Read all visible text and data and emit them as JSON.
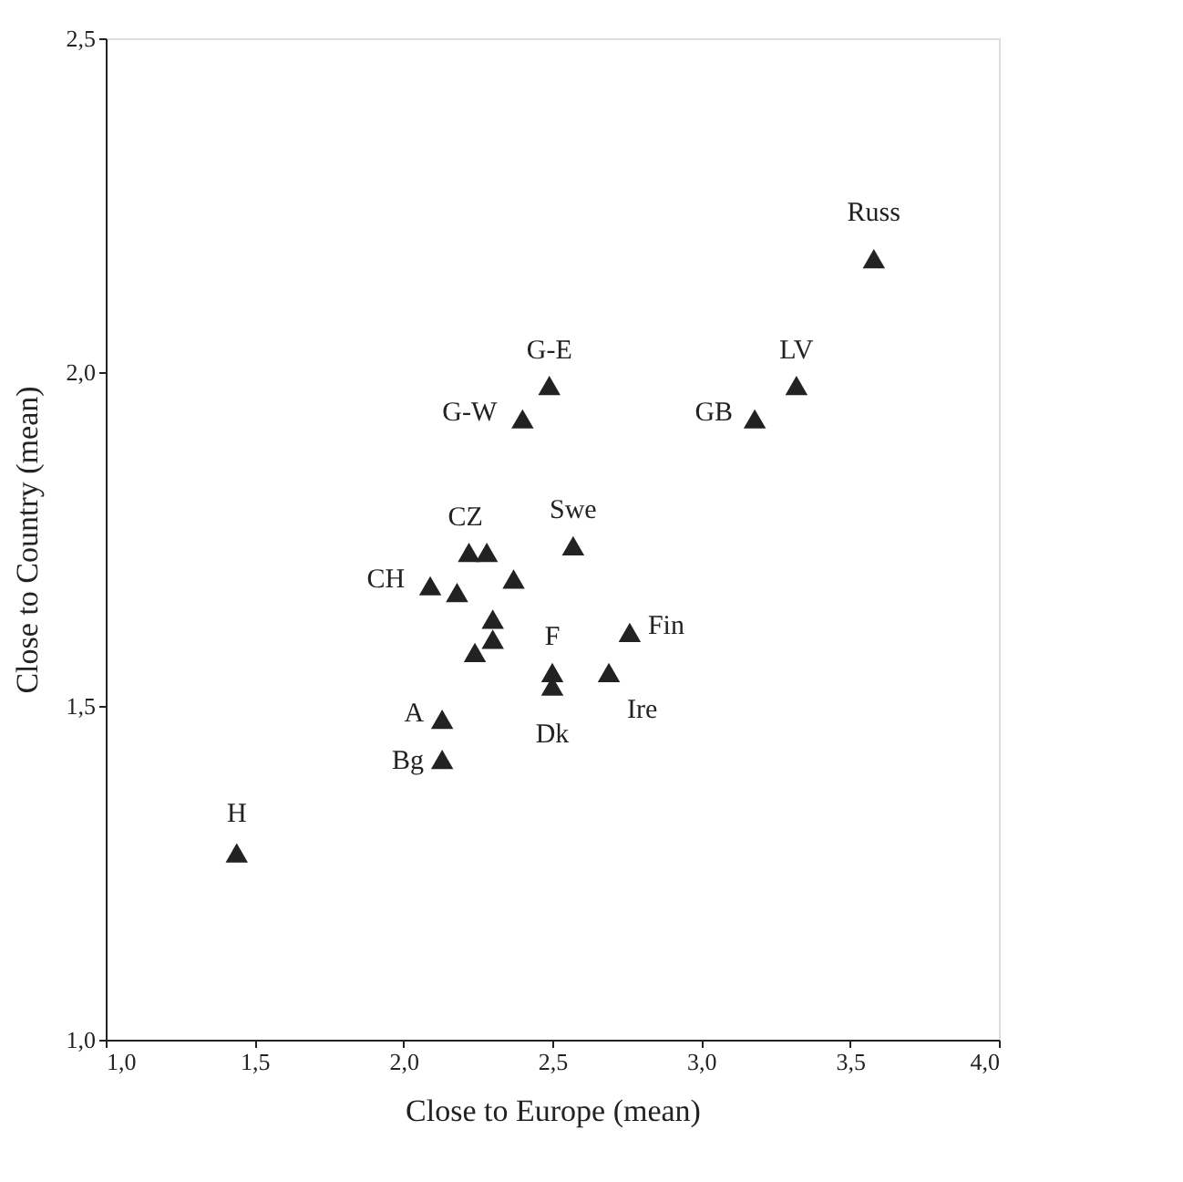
{
  "chart_data": {
    "type": "scatter",
    "xlabel": "Close to Europe (mean)",
    "ylabel": "Close to Country (mean)",
    "x": [
      3.58,
      2.49,
      2.4,
      3.18,
      3.32,
      2.22,
      2.28,
      2.09,
      2.18,
      2.37,
      2.57,
      2.3,
      2.3,
      2.24,
      2.5,
      2.5,
      2.76,
      2.69,
      2.13,
      2.13,
      1.44
    ],
    "series": [
      {
        "color": "#222222",
        "values": [
          2.17,
          1.98,
          1.93,
          1.93,
          1.98,
          1.73,
          1.73,
          1.68,
          1.67,
          1.69,
          1.74,
          1.63,
          1.6,
          1.58,
          1.55,
          1.53,
          1.61,
          1.55,
          1.48,
          1.42,
          1.28
        ]
      }
    ],
    "marker": "triangle",
    "grid": false,
    "xlim": [
      1.0,
      4.0
    ],
    "xticks": [
      {
        "value": 1.0,
        "label": "1,0"
      },
      {
        "value": 1.5,
        "label": "1,5"
      },
      {
        "value": 2.0,
        "label": "2,0"
      },
      {
        "value": 2.5,
        "label": "2,5"
      },
      {
        "value": 3.0,
        "label": "3,0"
      },
      {
        "value": 3.5,
        "label": "3,5"
      },
      {
        "value": 4.0,
        "label": "4,0"
      }
    ],
    "ylim": [
      1.0,
      2.5
    ],
    "yticks": [
      {
        "value": 1.0,
        "label": "1,0"
      },
      {
        "value": 1.5,
        "label": "1,5"
      },
      {
        "value": 2.0,
        "label": "2,0"
      },
      {
        "value": 2.5,
        "label": "2,5"
      }
    ],
    "annotations": [
      {
        "text": "Russ",
        "x": 3.58,
        "y": 2.17
      },
      {
        "text": "G-E",
        "x": 2.49,
        "y": 1.98
      },
      {
        "text": "G-W",
        "x": 2.4,
        "y": 1.93
      },
      {
        "text": "GB",
        "x": 3.18,
        "y": 1.93
      },
      {
        "text": "LV",
        "x": 3.32,
        "y": 1.98
      },
      {
        "text": "CZ",
        "x": 2.22,
        "y": 1.73
      },
      {
        "text": "CH",
        "x": 2.09,
        "y": 1.68
      },
      {
        "text": "Swe",
        "x": 2.57,
        "y": 1.74
      },
      {
        "text": "F",
        "x": 2.5,
        "y": 1.55
      },
      {
        "text": "Dk",
        "x": 2.5,
        "y": 1.53
      },
      {
        "text": "Fin",
        "x": 2.76,
        "y": 1.61
      },
      {
        "text": "Ire",
        "x": 2.69,
        "y": 1.55
      },
      {
        "text": "A",
        "x": 2.13,
        "y": 1.48
      },
      {
        "text": "Bg",
        "x": 2.13,
        "y": 1.42
      },
      {
        "text": "H",
        "x": 1.44,
        "y": 1.28
      }
    ]
  }
}
